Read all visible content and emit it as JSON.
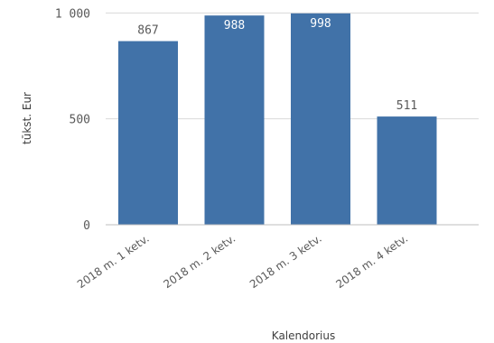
{
  "chart_data": {
    "type": "bar",
    "title": "",
    "xlabel": "Kalendorius",
    "ylabel": "tūkst. Eur",
    "categories": [
      "2018 m. 1 ketv.",
      "2018 m. 2 ketv.",
      "2018 m. 3 ketv.",
      "2018 m. 4 ketv."
    ],
    "values": [
      867,
      988,
      998,
      511
    ],
    "value_labels": [
      "867",
      "988",
      "998",
      "511"
    ],
    "y_ticks": [
      0,
      500,
      1000
    ],
    "y_tick_labels": [
      "0",
      "500",
      "1 000"
    ],
    "ylim": [
      0,
      1010
    ],
    "grid": true,
    "legend": "none",
    "colors": {
      "bar": "#4172a8",
      "grid": "#d9d9d9",
      "label_inside": "#ffffff",
      "label_outside": "#595959"
    }
  }
}
